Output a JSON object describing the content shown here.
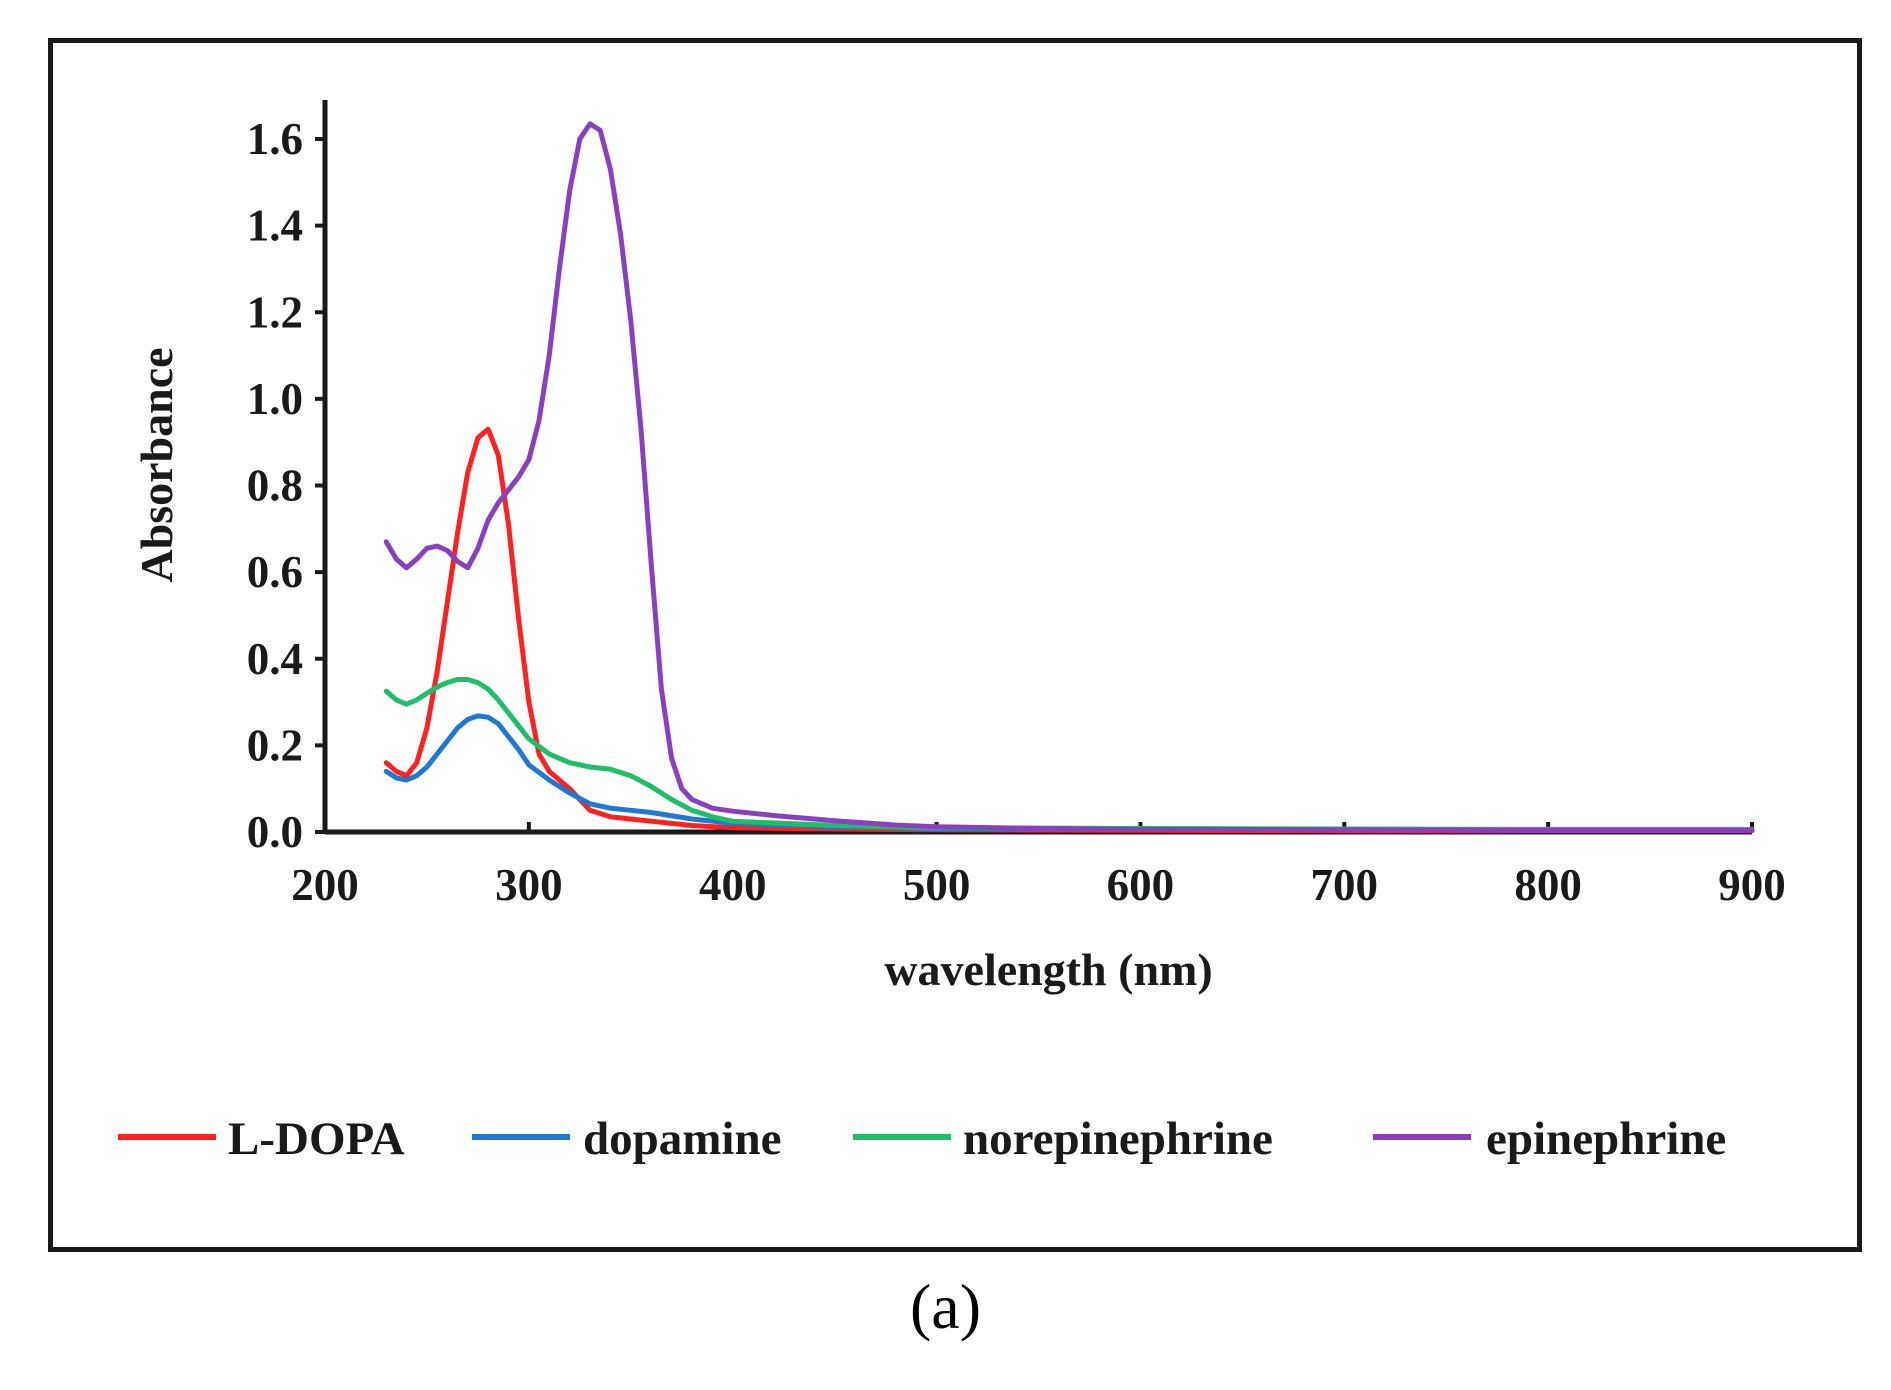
{
  "caption": "(a)",
  "chart_data": {
    "type": "line",
    "title": "",
    "xlabel": "wavelength (nm)",
    "ylabel": "Absorbance",
    "xlim": [
      200,
      900
    ],
    "ylim": [
      0,
      1.7
    ],
    "xticks": [
      200,
      300,
      400,
      500,
      600,
      700,
      800,
      900
    ],
    "yticks": [
      0.0,
      0.2,
      0.4,
      0.6,
      0.8,
      1.0,
      1.2,
      1.4,
      1.6
    ],
    "xtick_labels": [
      "200",
      "300",
      "400",
      "500",
      "600",
      "700",
      "800",
      "900"
    ],
    "ytick_labels": [
      "0.0",
      "0.2",
      "0.4",
      "0.6",
      "0.8",
      "1.0",
      "1.2",
      "1.4",
      "1.6"
    ],
    "grid": false,
    "legend_position": "bottom",
    "series": [
      {
        "name": "L-DOPA",
        "color": "#ff2020",
        "points": [
          [
            230,
            0.16
          ],
          [
            235,
            0.14
          ],
          [
            240,
            0.13
          ],
          [
            245,
            0.16
          ],
          [
            250,
            0.24
          ],
          [
            255,
            0.37
          ],
          [
            260,
            0.53
          ],
          [
            265,
            0.69
          ],
          [
            270,
            0.83
          ],
          [
            275,
            0.91
          ],
          [
            280,
            0.93
          ],
          [
            285,
            0.87
          ],
          [
            290,
            0.71
          ],
          [
            295,
            0.49
          ],
          [
            300,
            0.3
          ],
          [
            305,
            0.18
          ],
          [
            310,
            0.14
          ],
          [
            320,
            0.1
          ],
          [
            330,
            0.05
          ],
          [
            340,
            0.035
          ],
          [
            360,
            0.025
          ],
          [
            380,
            0.015
          ],
          [
            400,
            0.01
          ],
          [
            450,
            0.007
          ],
          [
            500,
            0.005
          ],
          [
            600,
            0.004
          ],
          [
            700,
            0.003
          ],
          [
            800,
            0.003
          ],
          [
            900,
            0.003
          ]
        ]
      },
      {
        "name": "dopamine",
        "color": "#1f78d1",
        "points": [
          [
            230,
            0.14
          ],
          [
            235,
            0.125
          ],
          [
            240,
            0.12
          ],
          [
            245,
            0.13
          ],
          [
            250,
            0.15
          ],
          [
            255,
            0.18
          ],
          [
            260,
            0.21
          ],
          [
            265,
            0.24
          ],
          [
            270,
            0.26
          ],
          [
            275,
            0.268
          ],
          [
            280,
            0.265
          ],
          [
            285,
            0.25
          ],
          [
            290,
            0.22
          ],
          [
            295,
            0.19
          ],
          [
            300,
            0.155
          ],
          [
            310,
            0.12
          ],
          [
            320,
            0.09
          ],
          [
            330,
            0.065
          ],
          [
            340,
            0.055
          ],
          [
            350,
            0.05
          ],
          [
            360,
            0.045
          ],
          [
            380,
            0.03
          ],
          [
            400,
            0.02
          ],
          [
            450,
            0.012
          ],
          [
            500,
            0.008
          ],
          [
            600,
            0.006
          ],
          [
            700,
            0.005
          ],
          [
            800,
            0.004
          ],
          [
            900,
            0.004
          ]
        ]
      },
      {
        "name": "norepinephrine",
        "color": "#1fbf6a",
        "points": [
          [
            230,
            0.325
          ],
          [
            235,
            0.305
          ],
          [
            240,
            0.295
          ],
          [
            245,
            0.305
          ],
          [
            250,
            0.32
          ],
          [
            255,
            0.335
          ],
          [
            260,
            0.345
          ],
          [
            265,
            0.352
          ],
          [
            270,
            0.352
          ],
          [
            275,
            0.345
          ],
          [
            280,
            0.33
          ],
          [
            285,
            0.305
          ],
          [
            290,
            0.275
          ],
          [
            295,
            0.245
          ],
          [
            300,
            0.215
          ],
          [
            310,
            0.18
          ],
          [
            320,
            0.16
          ],
          [
            330,
            0.15
          ],
          [
            340,
            0.145
          ],
          [
            350,
            0.13
          ],
          [
            360,
            0.105
          ],
          [
            370,
            0.075
          ],
          [
            380,
            0.05
          ],
          [
            390,
            0.035
          ],
          [
            400,
            0.025
          ],
          [
            450,
            0.015
          ],
          [
            500,
            0.01
          ],
          [
            600,
            0.008
          ],
          [
            700,
            0.007
          ],
          [
            800,
            0.006
          ],
          [
            900,
            0.006
          ]
        ]
      },
      {
        "name": "epinephrine",
        "color": "#8a3fbf",
        "points": [
          [
            230,
            0.67
          ],
          [
            235,
            0.63
          ],
          [
            240,
            0.61
          ],
          [
            245,
            0.63
          ],
          [
            250,
            0.655
          ],
          [
            255,
            0.66
          ],
          [
            260,
            0.65
          ],
          [
            265,
            0.625
          ],
          [
            270,
            0.61
          ],
          [
            275,
            0.655
          ],
          [
            280,
            0.72
          ],
          [
            285,
            0.76
          ],
          [
            290,
            0.79
          ],
          [
            295,
            0.82
          ],
          [
            300,
            0.86
          ],
          [
            305,
            0.95
          ],
          [
            310,
            1.1
          ],
          [
            315,
            1.3
          ],
          [
            320,
            1.48
          ],
          [
            325,
            1.6
          ],
          [
            330,
            1.635
          ],
          [
            335,
            1.62
          ],
          [
            340,
            1.53
          ],
          [
            345,
            1.38
          ],
          [
            350,
            1.18
          ],
          [
            355,
            0.93
          ],
          [
            360,
            0.62
          ],
          [
            365,
            0.33
          ],
          [
            370,
            0.17
          ],
          [
            375,
            0.1
          ],
          [
            380,
            0.075
          ],
          [
            390,
            0.055
          ],
          [
            400,
            0.048
          ],
          [
            420,
            0.038
          ],
          [
            450,
            0.026
          ],
          [
            480,
            0.016
          ],
          [
            500,
            0.012
          ],
          [
            550,
            0.008
          ],
          [
            600,
            0.006
          ],
          [
            700,
            0.005
          ],
          [
            800,
            0.004
          ],
          [
            900,
            0.004
          ]
        ]
      }
    ]
  }
}
